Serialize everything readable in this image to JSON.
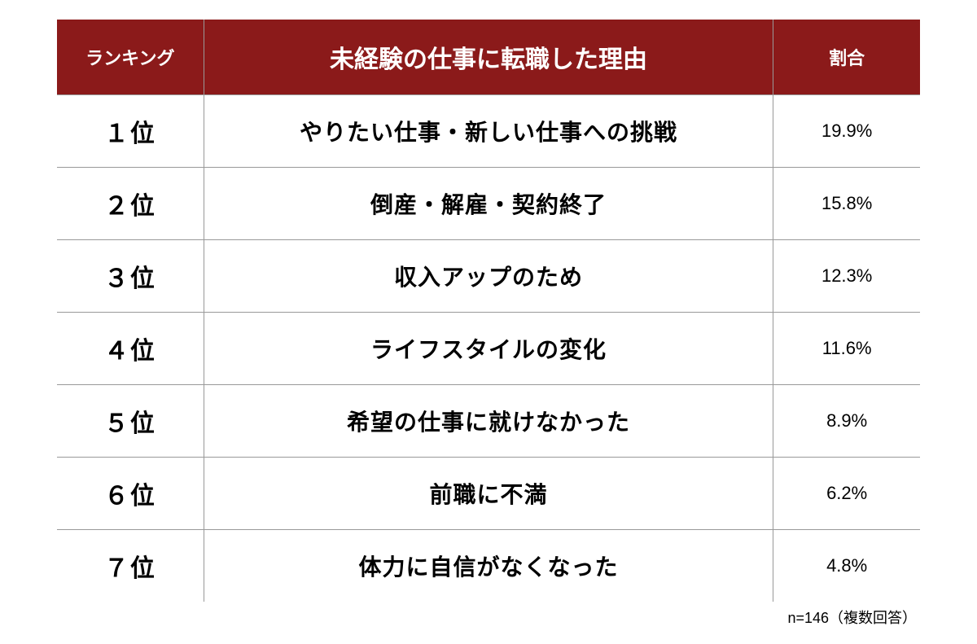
{
  "table": {
    "header_bg_color": "#8b1a1a",
    "header_text_color": "#ffffff",
    "border_color": "#999999",
    "columns": {
      "rank": "ランキング",
      "reason": "未経験の仕事に転職した理由",
      "percent": "割合"
    },
    "rows": [
      {
        "rank": "１位",
        "reason": "やりたい仕事・新しい仕事への挑戦",
        "percent": "19.9%"
      },
      {
        "rank": "２位",
        "reason": "倒産・解雇・契約終了",
        "percent": "15.8%"
      },
      {
        "rank": "３位",
        "reason": "収入アップのため",
        "percent": "12.3%"
      },
      {
        "rank": "４位",
        "reason": "ライフスタイルの変化",
        "percent": "11.6%"
      },
      {
        "rank": "５位",
        "reason": "希望の仕事に就けなかった",
        "percent": "8.9%"
      },
      {
        "rank": "６位",
        "reason": "前職に不満",
        "percent": "6.2%"
      },
      {
        "rank": "７位",
        "reason": "体力に自信がなくなった",
        "percent": "4.8%"
      }
    ]
  },
  "footnote": "n=146（複数回答）"
}
